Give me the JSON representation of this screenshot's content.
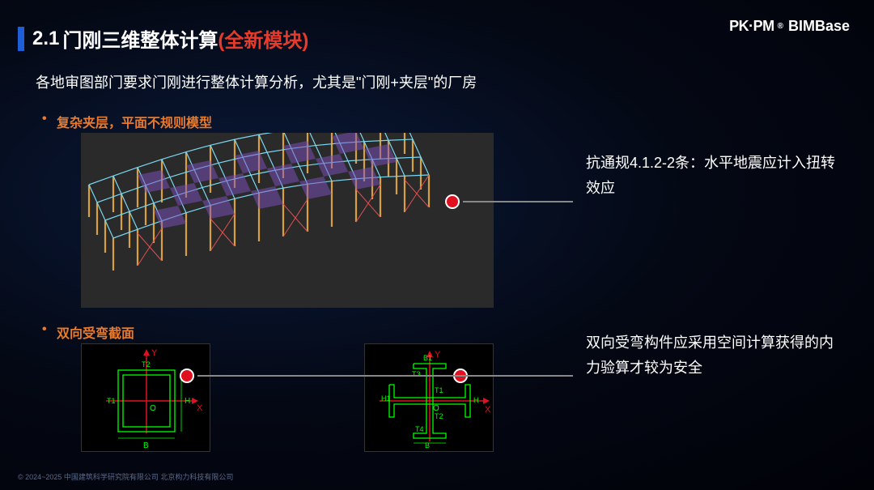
{
  "logo": {
    "brand1": "PK·PM",
    "reg": "®",
    "brand2": "BIMBase"
  },
  "title": {
    "number": "2.1",
    "main": "门刚三维整体计算",
    "accent": "(全新模块)",
    "accent_color": "#e83a2a"
  },
  "subtitle": "各地审图部门要求门刚进行整体计算分析，尤其是\"门刚+夹层\"的厂房",
  "bullet1": {
    "text": "复杂夹层，平面不规则模型",
    "color": "#e87a2a"
  },
  "bullet2": {
    "text": "双向受弯截面",
    "color": "#e87a2a"
  },
  "note1": "抗通规4.1.2-2条：水平地震应计入扭转效应",
  "note2": "双向受弯构件应采用空间计算获得的内力验算才较为安全",
  "dot_color": "#e01020",
  "model": {
    "bg": "#2a2a2a",
    "column_color": "#d8a040",
    "beam_color": "#7ad8f0",
    "slab_color": "#8050c0",
    "brace_color": "#e05050"
  },
  "diagram1": {
    "axis_color": "#e01020",
    "line_color": "#00ff00",
    "labels": {
      "x": "X",
      "y": "Y",
      "origin": "O",
      "B": "B",
      "H": "H",
      "T1": "T1",
      "T2": "T2"
    }
  },
  "diagram2": {
    "axis_color": "#e01020",
    "line_color": "#00ff00",
    "labels": {
      "x": "X",
      "y": "Y",
      "origin": "O",
      "B": "B",
      "B1": "B1",
      "H": "H",
      "H1": "H1",
      "T1": "T1",
      "T2": "T2",
      "T3": "T3",
      "T4": "T4"
    }
  },
  "footer": "© 2024~2025 中国建筑科学研究院有限公司 北京构力科技有限公司"
}
